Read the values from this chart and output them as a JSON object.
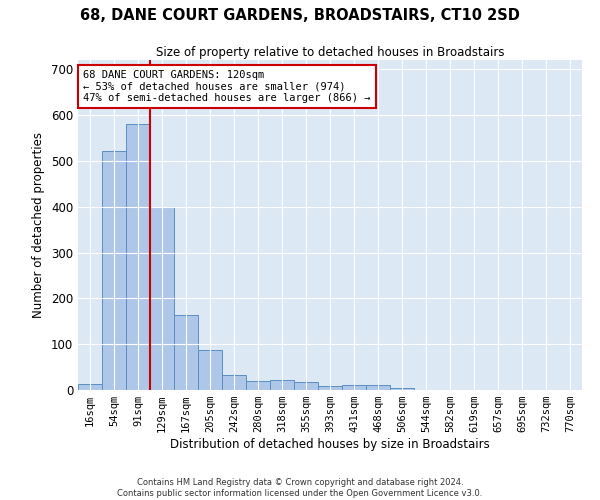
{
  "title": "68, DANE COURT GARDENS, BROADSTAIRS, CT10 2SD",
  "subtitle": "Size of property relative to detached houses in Broadstairs",
  "xlabel": "Distribution of detached houses by size in Broadstairs",
  "ylabel": "Number of detached properties",
  "bar_labels": [
    "16sqm",
    "54sqm",
    "91sqm",
    "129sqm",
    "167sqm",
    "205sqm",
    "242sqm",
    "280sqm",
    "318sqm",
    "355sqm",
    "393sqm",
    "431sqm",
    "468sqm",
    "506sqm",
    "544sqm",
    "582sqm",
    "619sqm",
    "657sqm",
    "695sqm",
    "732sqm",
    "770sqm"
  ],
  "bar_values": [
    13,
    521,
    580,
    400,
    163,
    88,
    32,
    20,
    22,
    17,
    8,
    11,
    11,
    5,
    0,
    0,
    0,
    0,
    0,
    0,
    0
  ],
  "bar_color": "#aec6e8",
  "bar_edge_color": "#5a8fc2",
  "vline_index": 3,
  "vline_color": "#cc0000",
  "annotation_text": "68 DANE COURT GARDENS: 120sqm\n← 53% of detached houses are smaller (974)\n47% of semi-detached houses are larger (866) →",
  "annotation_box_color": "#ffffff",
  "annotation_box_edge_color": "#cc0000",
  "ylim": [
    0,
    720
  ],
  "yticks": [
    0,
    100,
    200,
    300,
    400,
    500,
    600,
    700
  ],
  "bg_color": "#dde8f5",
  "footer_line1": "Contains HM Land Registry data © Crown copyright and database right 2024.",
  "footer_line2": "Contains public sector information licensed under the Open Government Licence v3.0."
}
